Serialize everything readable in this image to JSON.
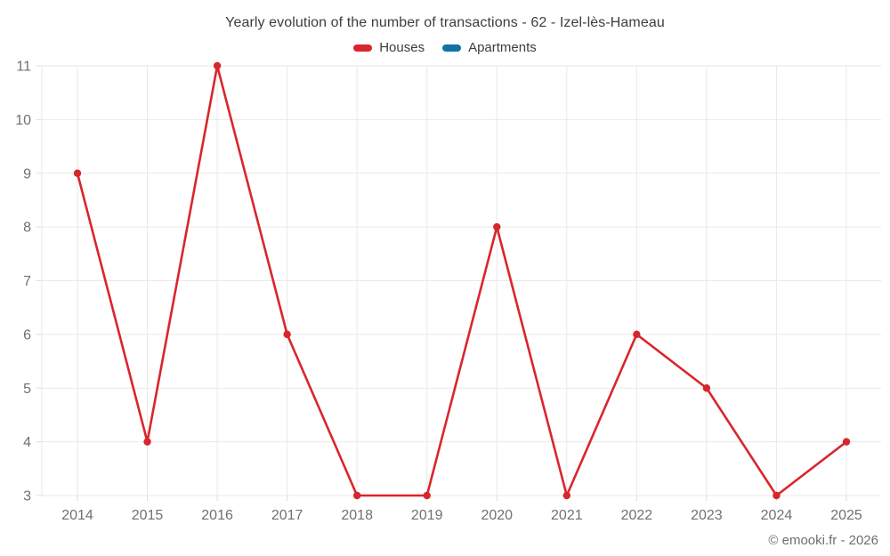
{
  "title": "Yearly evolution of the number of transactions - 62 - Izel-lès-Hameau",
  "legend": {
    "items": [
      {
        "label": "Houses",
        "color": "#d9262d"
      },
      {
        "label": "Apartments",
        "color": "#0f73a8"
      }
    ]
  },
  "footer": {
    "copyright": "© emooki.fr - 2026"
  },
  "colors": {
    "houses": "#d9262d",
    "apartments": "#0f73a8",
    "grid": "#e9e9e9",
    "tick": "#dedede",
    "axis_label": "#707070",
    "title_text": "#3d3d3d",
    "footer_text": "#6e6e6e",
    "background": "#ffffff"
  },
  "chart_data": {
    "type": "line",
    "title": "Yearly evolution of the number of transactions - 62 - Izel-lès-Hameau",
    "categories": [
      "2014",
      "2015",
      "2016",
      "2017",
      "2018",
      "2019",
      "2020",
      "2021",
      "2022",
      "2023",
      "2024",
      "2025"
    ],
    "series": [
      {
        "name": "Houses",
        "color": "#d9262d",
        "values": [
          9,
          4,
          11,
          6,
          3,
          3,
          8,
          3,
          6,
          5,
          3,
          4
        ]
      },
      {
        "name": "Apartments",
        "color": "#0f73a8",
        "values": []
      }
    ],
    "xlabel": "",
    "ylabel": "",
    "ylim": [
      3,
      11
    ],
    "ytick_step": 1,
    "grid": true,
    "legend_position": "top",
    "marker": "circle"
  }
}
